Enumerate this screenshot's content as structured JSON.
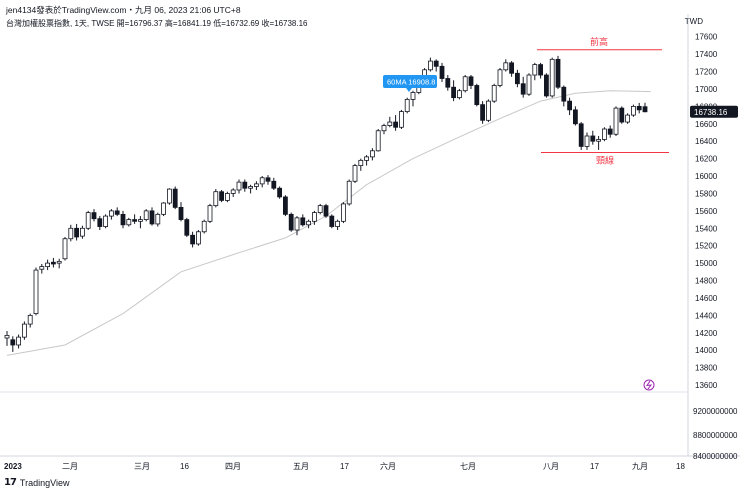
{
  "header": {
    "title": "jen4134發表於TradingView.com・九月 06, 2023 21:06 UTC+8",
    "symbol_line": "台灣加權股票指數, 1天, TWSE  開=16796.37  高=16841.19  低=16732.69  收=16738.16",
    "currency": "TWD"
  },
  "footer": {
    "brand": "TradingView"
  },
  "colors": {
    "up": "#131722",
    "down": "#131722",
    "ma": "#c8c8c8",
    "annotation": "#f23645",
    "ma_label_bg": "#2196f3",
    "price_tag_bg": "#131722"
  },
  "chart_data": {
    "type": "candlestick",
    "y_ticks": [
      13600,
      13800,
      14000,
      14200,
      14400,
      14600,
      14800,
      15000,
      15200,
      15400,
      15600,
      15800,
      16000,
      16200,
      16400,
      16600,
      16800,
      17000,
      17200,
      17400,
      17600
    ],
    "y_range": [
      13520,
      17700
    ],
    "volume_ticks": [
      "9200000000",
      "8800000000",
      "8400000000"
    ],
    "x_labels": [
      "2023",
      "二月",
      "三月",
      "16",
      "四月",
      "五月",
      "17",
      "六月",
      "七月",
      "八月",
      "17",
      "九月",
      "18"
    ],
    "last_price": "16738.16",
    "ma_label": "60MA 16908.8",
    "annotations": [
      {
        "text": "前高",
        "price": 17450
      },
      {
        "text": "頸線",
        "price": 16270
      }
    ],
    "candles": [
      [
        14140,
        14220,
        14050,
        14170
      ],
      [
        14120,
        14160,
        13980,
        14060
      ],
      [
        14060,
        14180,
        14020,
        14150
      ],
      [
        14150,
        14330,
        14120,
        14300
      ],
      [
        14300,
        14420,
        14260,
        14400
      ],
      [
        14420,
        14950,
        14400,
        14920
      ],
      [
        14930,
        14990,
        14880,
        14960
      ],
      [
        14960,
        15040,
        14920,
        15000
      ],
      [
        15010,
        15060,
        14950,
        14990
      ],
      [
        15000,
        15050,
        14940,
        15020
      ],
      [
        15050,
        15300,
        15030,
        15280
      ],
      [
        15280,
        15440,
        15250,
        15400
      ],
      [
        15400,
        15450,
        15260,
        15300
      ],
      [
        15310,
        15430,
        15280,
        15400
      ],
      [
        15400,
        15600,
        15380,
        15580
      ],
      [
        15580,
        15620,
        15480,
        15510
      ],
      [
        15510,
        15540,
        15380,
        15420
      ],
      [
        15420,
        15560,
        15400,
        15540
      ],
      [
        15540,
        15620,
        15500,
        15600
      ],
      [
        15600,
        15640,
        15540,
        15560
      ],
      [
        15560,
        15600,
        15400,
        15440
      ],
      [
        15440,
        15520,
        15420,
        15500
      ],
      [
        15500,
        15560,
        15450,
        15480
      ],
      [
        15480,
        15540,
        15400,
        15500
      ],
      [
        15500,
        15620,
        15480,
        15600
      ],
      [
        15600,
        15640,
        15430,
        15450
      ],
      [
        15450,
        15580,
        15420,
        15560
      ],
      [
        15560,
        15700,
        15540,
        15690
      ],
      [
        15690,
        15860,
        15670,
        15850
      ],
      [
        15850,
        15880,
        15620,
        15640
      ],
      [
        15640,
        15700,
        15480,
        15500
      ],
      [
        15500,
        15520,
        15300,
        15320
      ],
      [
        15320,
        15360,
        15180,
        15220
      ],
      [
        15220,
        15380,
        15200,
        15360
      ],
      [
        15360,
        15500,
        15340,
        15480
      ],
      [
        15480,
        15680,
        15460,
        15660
      ],
      [
        15660,
        15850,
        15640,
        15820
      ],
      [
        15820,
        15840,
        15700,
        15720
      ],
      [
        15720,
        15820,
        15700,
        15800
      ],
      [
        15800,
        15860,
        15760,
        15840
      ],
      [
        15840,
        15960,
        15800,
        15930
      ],
      [
        15930,
        15960,
        15820,
        15860
      ],
      [
        15860,
        15900,
        15800,
        15880
      ],
      [
        15880,
        15940,
        15840,
        15910
      ],
      [
        15910,
        16000,
        15870,
        15980
      ],
      [
        15980,
        16010,
        15900,
        15940
      ],
      [
        15940,
        15980,
        15840,
        15860
      ],
      [
        15860,
        15880,
        15740,
        15760
      ],
      [
        15760,
        15780,
        15540,
        15560
      ],
      [
        15560,
        15580,
        15360,
        15380
      ],
      [
        15380,
        15540,
        15320,
        15520
      ],
      [
        15520,
        15560,
        15420,
        15440
      ],
      [
        15440,
        15500,
        15400,
        15480
      ],
      [
        15480,
        15600,
        15440,
        15580
      ],
      [
        15580,
        15680,
        15560,
        15660
      ],
      [
        15660,
        15680,
        15520,
        15540
      ],
      [
        15540,
        15560,
        15400,
        15420
      ],
      [
        15420,
        15500,
        15380,
        15480
      ],
      [
        15480,
        15700,
        15460,
        15680
      ],
      [
        15680,
        15960,
        15660,
        15940
      ],
      [
        15940,
        16140,
        15920,
        16120
      ],
      [
        16120,
        16200,
        16060,
        16180
      ],
      [
        16180,
        16240,
        16120,
        16220
      ],
      [
        16220,
        16320,
        16180,
        16290
      ],
      [
        16290,
        16540,
        16280,
        16520
      ],
      [
        16520,
        16600,
        16480,
        16580
      ],
      [
        16580,
        16680,
        16560,
        16620
      ],
      [
        16620,
        16700,
        16520,
        16560
      ],
      [
        16560,
        16760,
        16540,
        16740
      ],
      [
        16740,
        16900,
        16720,
        16880
      ],
      [
        16880,
        16980,
        16800,
        16960
      ],
      [
        16960,
        17100,
        16940,
        17080
      ],
      [
        17080,
        17240,
        17060,
        17220
      ],
      [
        17220,
        17360,
        17200,
        17320
      ],
      [
        17320,
        17340,
        17200,
        17260
      ],
      [
        17260,
        17300,
        17080,
        17120
      ],
      [
        17120,
        17160,
        16980,
        17020
      ],
      [
        17020,
        17100,
        16860,
        16900
      ],
      [
        16900,
        17000,
        16880,
        16980
      ],
      [
        16980,
        17160,
        16960,
        17140
      ],
      [
        17140,
        17160,
        17000,
        17040
      ],
      [
        17040,
        17060,
        16800,
        16820
      ],
      [
        16820,
        16860,
        16600,
        16640
      ],
      [
        16640,
        16880,
        16620,
        16860
      ],
      [
        16860,
        17060,
        16840,
        17040
      ],
      [
        17040,
        17240,
        17020,
        17220
      ],
      [
        17220,
        17340,
        17200,
        17300
      ],
      [
        17300,
        17320,
        17140,
        17180
      ],
      [
        17180,
        17220,
        17020,
        17060
      ],
      [
        17060,
        17140,
        16900,
        16940
      ],
      [
        16940,
        17180,
        16920,
        17160
      ],
      [
        17160,
        17300,
        17100,
        17280
      ],
      [
        17280,
        17300,
        17120,
        17160
      ],
      [
        17160,
        17180,
        16900,
        16920
      ],
      [
        16920,
        17360,
        16900,
        17340
      ],
      [
        17340,
        17380,
        17000,
        17020
      ],
      [
        17020,
        17040,
        16800,
        16860
      ],
      [
        16860,
        16900,
        16700,
        16760
      ],
      [
        16760,
        16800,
        16580,
        16600
      ],
      [
        16600,
        16620,
        16300,
        16340
      ],
      [
        16340,
        16500,
        16300,
        16460
      ],
      [
        16460,
        16520,
        16360,
        16400
      ],
      [
        16400,
        16460,
        16300,
        16420
      ],
      [
        16420,
        16560,
        16400,
        16540
      ],
      [
        16540,
        16580,
        16440,
        16480
      ],
      [
        16480,
        16800,
        16460,
        16780
      ],
      [
        16780,
        16800,
        16600,
        16620
      ],
      [
        16620,
        16720,
        16600,
        16700
      ],
      [
        16700,
        16820,
        16680,
        16800
      ],
      [
        16800,
        16840,
        16720,
        16760
      ],
      [
        16796,
        16841,
        16732,
        16738
      ]
    ],
    "ma60": [
      [
        0,
        13940
      ],
      [
        10,
        14060
      ],
      [
        20,
        14420
      ],
      [
        30,
        14900
      ],
      [
        40,
        15120
      ],
      [
        48,
        15290
      ],
      [
        55,
        15540
      ],
      [
        62,
        15900
      ],
      [
        70,
        16200
      ],
      [
        78,
        16450
      ],
      [
        85,
        16660
      ],
      [
        92,
        16860
      ],
      [
        98,
        16950
      ],
      [
        104,
        16980
      ],
      [
        111,
        16970
      ]
    ]
  }
}
